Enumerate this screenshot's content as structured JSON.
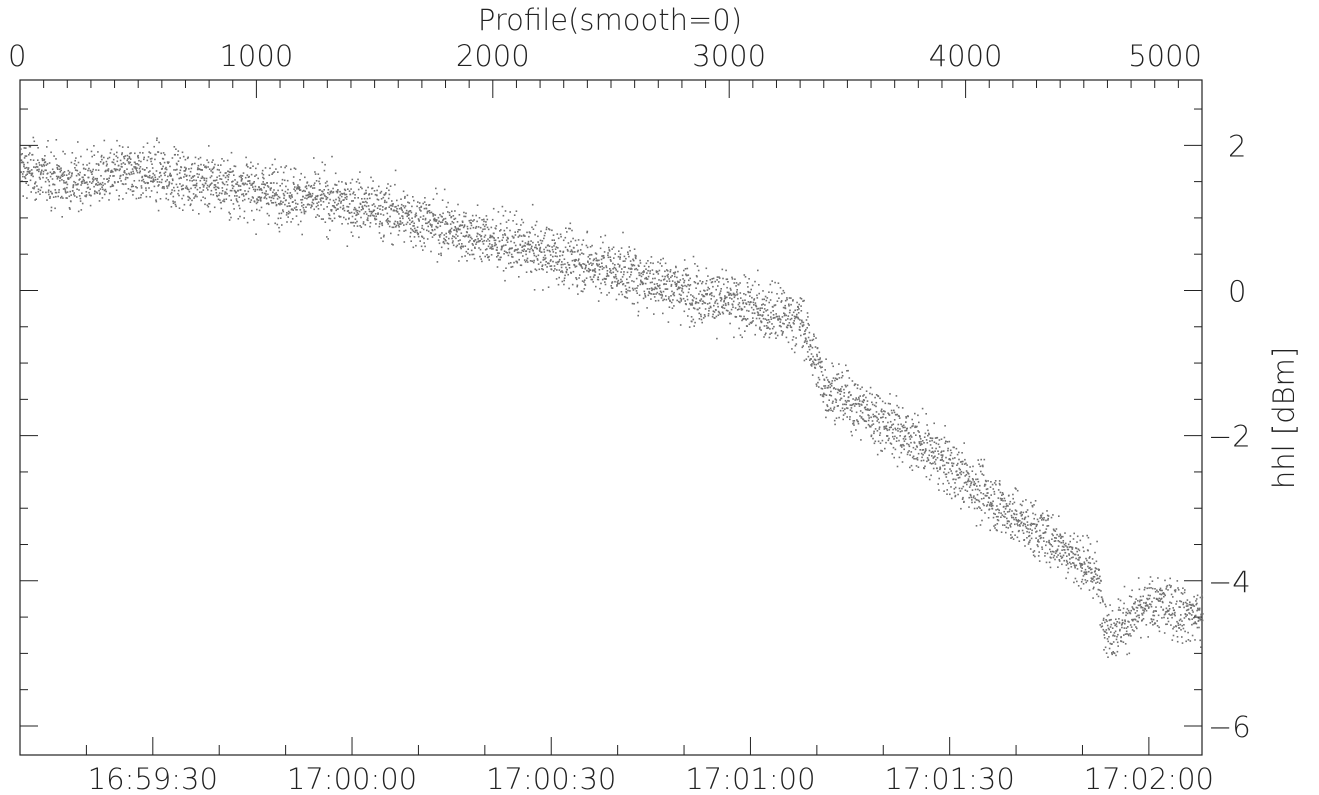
{
  "chart_data": {
    "type": "scatter",
    "title": "Profile(smooth=0)",
    "ylabel": "hhl [dBm]",
    "xlabel": "",
    "top_axis": {
      "label": "Profile(smooth=0)",
      "range": [
        0,
        5000
      ],
      "ticks": [
        0,
        1000,
        2000,
        3000,
        4000,
        5000
      ],
      "tick_labels": [
        "0",
        "1000",
        "2000",
        "3000",
        "4000",
        "5000"
      ]
    },
    "bottom_axis": {
      "range": [
        "16:59:10",
        "17:02:08"
      ],
      "tick_labels": [
        "16:59:30",
        "17:00:00",
        "17:00:30",
        "17:01:00",
        "17:01:30",
        "17:02:00"
      ]
    },
    "right_axis": {
      "label": "hhl [dBm]",
      "range": [
        -6.4,
        2.9
      ],
      "ticks": [
        2,
        0,
        -2,
        -4,
        -6
      ],
      "tick_labels": [
        "2",
        "0",
        "−2",
        "−4",
        "−6"
      ]
    },
    "grid": false,
    "legend": "none",
    "marker_color": "#707070",
    "series": [
      {
        "trend": {
          "x": [
            0,
            200,
            500,
            1000,
            1500,
            2000,
            2500,
            3000,
            3300,
            3400,
            3800,
            4200,
            4400,
            4550,
            4600,
            4800,
            5000
          ],
          "y": [
            1.7,
            1.5,
            1.65,
            1.4,
            1.15,
            0.7,
            0.3,
            -0.15,
            -0.4,
            -1.3,
            -2.1,
            -3.1,
            -3.5,
            -3.9,
            -4.7,
            -4.3,
            -4.5
          ]
        },
        "spread": 0.33,
        "count": 5000
      }
    ]
  }
}
